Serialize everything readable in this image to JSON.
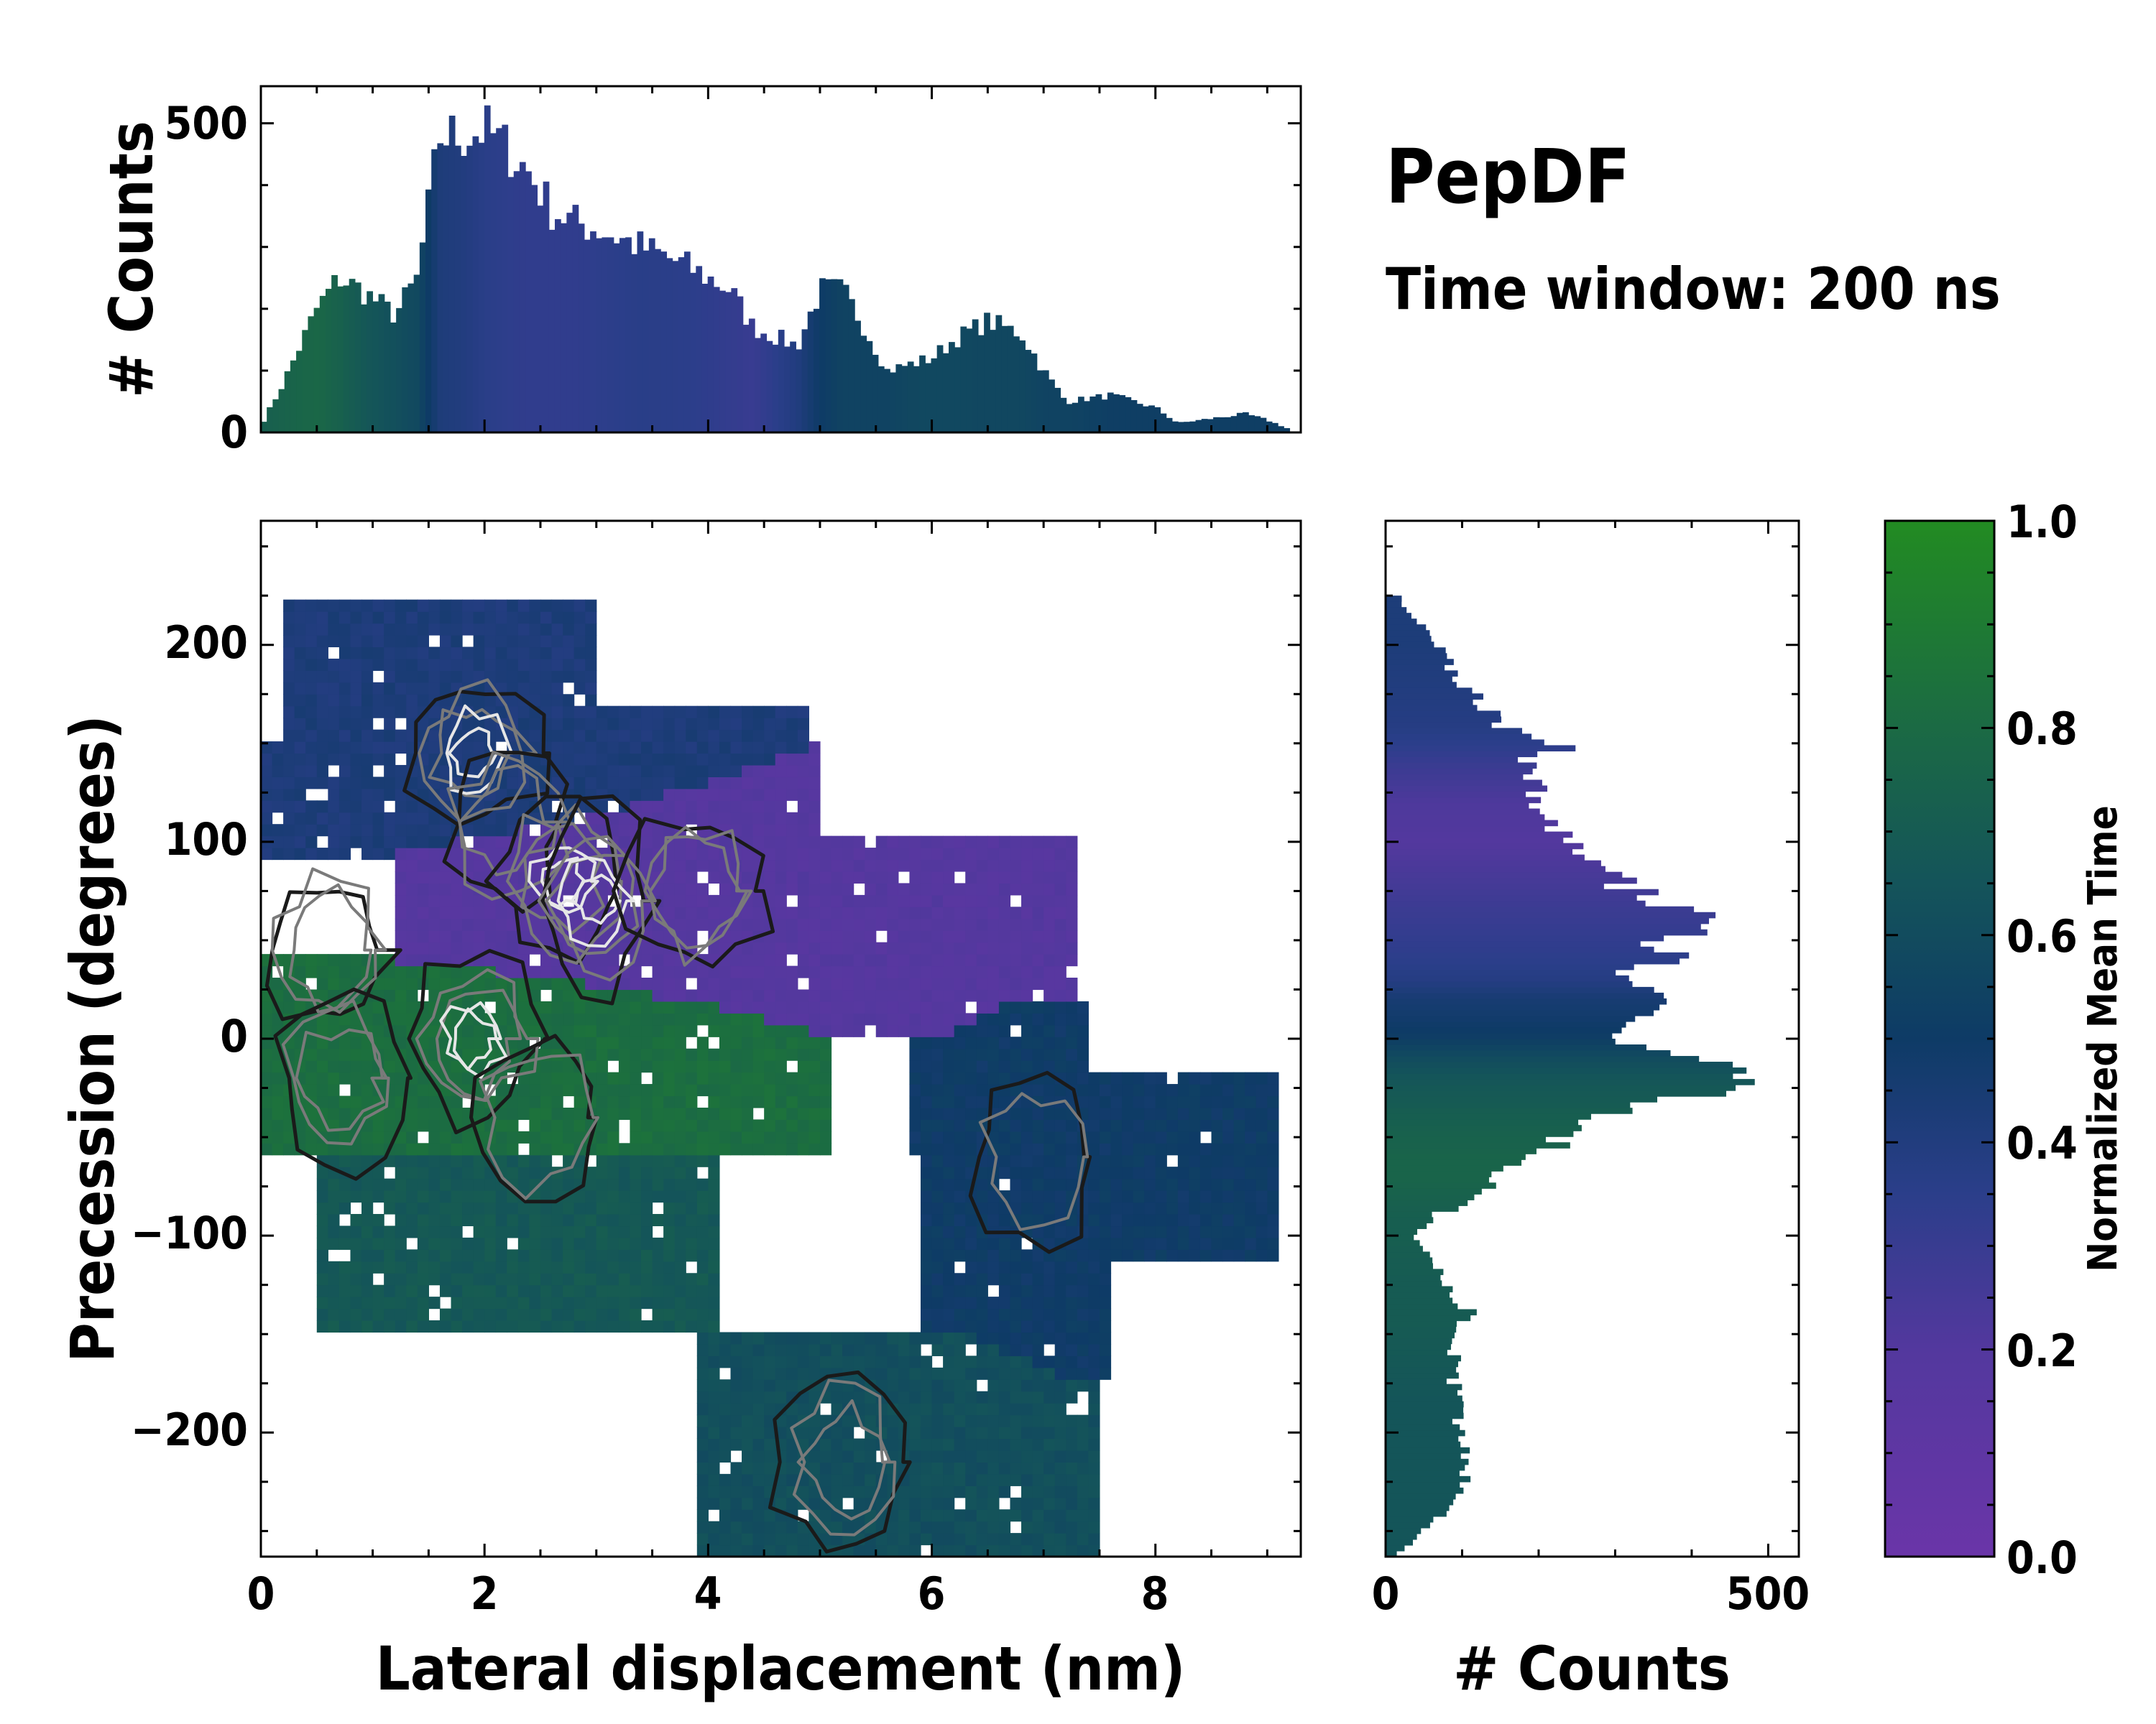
{
  "figure": {
    "title": "PepDF",
    "subtitle": "Time window: 200 ns"
  },
  "colors": {
    "cmap_low": "#6a35a8",
    "cmap_mid": "#0e3b66",
    "cmap_high": "#228b22",
    "contour_dark": "#1a1a1a",
    "contour_gray": "#7a7a7a",
    "contour_light": "#e6e6e6"
  },
  "chart_data": [
    {
      "id": "top-histogram",
      "type": "bar",
      "xlabel": "",
      "ylabel": "# Counts",
      "xlim": [
        0,
        9.3
      ],
      "ylim": [
        0,
        560
      ],
      "yticks": [
        0,
        500
      ],
      "ytick_labels": [
        "0",
        "500"
      ],
      "x_knots": [
        0.0,
        0.2,
        0.5,
        0.7,
        0.9,
        1.2,
        1.4,
        1.6,
        1.8,
        2.0,
        2.2,
        2.4,
        2.6,
        2.8,
        3.0,
        3.4,
        3.8,
        4.2,
        4.4,
        4.8,
        5.0,
        5.2,
        5.4,
        5.6,
        5.8,
        6.0,
        6.2,
        6.5,
        6.8,
        7.0,
        7.2,
        7.6,
        8.0,
        8.2,
        8.6,
        8.8,
        9.0,
        9.2
      ],
      "count_knots": [
        10,
        80,
        200,
        250,
        230,
        190,
        250,
        480,
        480,
        490,
        460,
        420,
        360,
        340,
        330,
        300,
        270,
        230,
        170,
        140,
        230,
        230,
        170,
        100,
        110,
        120,
        150,
        180,
        160,
        100,
        50,
        60,
        40,
        15,
        25,
        30,
        20,
        5
      ],
      "time_knots": [
        0.72,
        0.75,
        0.78,
        0.74,
        0.68,
        0.62,
        0.58,
        0.42,
        0.4,
        0.36,
        0.34,
        0.33,
        0.33,
        0.33,
        0.34,
        0.36,
        0.35,
        0.32,
        0.3,
        0.4,
        0.5,
        0.55,
        0.55,
        0.55,
        0.57,
        0.58,
        0.58,
        0.57,
        0.57,
        0.55,
        0.55,
        0.52,
        0.52,
        0.52,
        0.52,
        0.52,
        0.52,
        0.52
      ]
    },
    {
      "id": "main-heatmap",
      "type": "heatmap",
      "xlabel": "Lateral displacement (nm)",
      "ylabel": "Precession (degrees)",
      "xlim": [
        0,
        9.3
      ],
      "ylim": [
        -263,
        263
      ],
      "xticks": [
        0,
        2,
        4,
        6,
        8
      ],
      "xtick_labels": [
        "0",
        "2",
        "4",
        "6",
        "8"
      ],
      "yticks": [
        -200,
        -100,
        0,
        100,
        200
      ],
      "ytick_labels": [
        "−200",
        "−100",
        "0",
        "100",
        "200"
      ],
      "grid": false,
      "colorbar_label": "Normalized Mean Time",
      "regions": [
        {
          "name": "upper-blue-lobe",
          "x": [
            0.0,
            4.9
          ],
          "y": [
            90,
            220
          ],
          "mean_time": 0.42
        },
        {
          "name": "central-purple",
          "x": [
            1.2,
            7.3
          ],
          "y": [
            0,
            150
          ],
          "mean_time": 0.18
        },
        {
          "name": "left-green-band",
          "x": [
            0.0,
            5.1
          ],
          "y": [
            -60,
            40
          ],
          "mean_time": 0.82
        },
        {
          "name": "lower-left-teal",
          "x": [
            0.2,
            4.1
          ],
          "y": [
            -150,
            -55
          ],
          "mean_time": 0.68
        },
        {
          "name": "right-navy-arm",
          "x": [
            5.8,
            9.2
          ],
          "y": [
            -170,
            20
          ],
          "mean_time": 0.5
        },
        {
          "name": "bottom-teal-blob",
          "x": [
            3.9,
            7.5
          ],
          "y": [
            -263,
            -150
          ],
          "mean_time": 0.62
        }
      ],
      "density_peaks": [
        {
          "x": 1.9,
          "y": 145,
          "level": "high"
        },
        {
          "x": 2.2,
          "y": 110,
          "level": "medium"
        },
        {
          "x": 2.7,
          "y": 80,
          "level": "high"
        },
        {
          "x": 3.0,
          "y": 70,
          "level": "high"
        },
        {
          "x": 3.9,
          "y": 75,
          "level": "medium"
        },
        {
          "x": 0.6,
          "y": 45,
          "level": "medium"
        },
        {
          "x": 1.9,
          "y": 0,
          "level": "high"
        },
        {
          "x": 0.7,
          "y": -20,
          "level": "medium"
        },
        {
          "x": 2.5,
          "y": -40,
          "level": "low"
        },
        {
          "x": 5.2,
          "y": -215,
          "level": "medium"
        },
        {
          "x": 6.9,
          "y": -60,
          "level": "low"
        }
      ]
    },
    {
      "id": "right-histogram",
      "type": "bar",
      "orientation": "horizontal",
      "xlabel": "# Counts",
      "ylabel": "",
      "xlim": [
        0,
        540
      ],
      "ylim": [
        -263,
        263
      ],
      "xticks": [
        0,
        500
      ],
      "xtick_labels": [
        "0",
        "500"
      ],
      "y_knots": [
        -263,
        -240,
        -220,
        -200,
        -180,
        -160,
        -140,
        -120,
        -100,
        -90,
        -80,
        -70,
        -60,
        -40,
        -20,
        -10,
        0,
        10,
        20,
        30,
        40,
        60,
        70,
        80,
        100,
        120,
        140,
        150,
        160,
        180,
        200,
        220
      ],
      "count_knots": [
        10,
        80,
        110,
        100,
        90,
        90,
        110,
        70,
        40,
        60,
        130,
        150,
        180,
        300,
        470,
        380,
        300,
        320,
        360,
        280,
        350,
        400,
        360,
        300,
        230,
        200,
        180,
        240,
        150,
        100,
        70,
        20
      ],
      "time_knots": [
        0.66,
        0.66,
        0.66,
        0.66,
        0.66,
        0.68,
        0.7,
        0.7,
        0.72,
        0.72,
        0.74,
        0.76,
        0.76,
        0.72,
        0.66,
        0.6,
        0.52,
        0.48,
        0.45,
        0.38,
        0.35,
        0.3,
        0.28,
        0.25,
        0.2,
        0.22,
        0.3,
        0.35,
        0.38,
        0.4,
        0.42,
        0.42
      ]
    },
    {
      "id": "colorbar",
      "type": "colorbar",
      "label": "Normalized Mean Time",
      "range": [
        0,
        1
      ],
      "ticks": [
        0.0,
        0.2,
        0.4,
        0.6,
        0.8,
        1.0
      ],
      "tick_labels": [
        "0.0",
        "0.2",
        "0.4",
        "0.6",
        "0.8",
        "1.0"
      ]
    }
  ]
}
